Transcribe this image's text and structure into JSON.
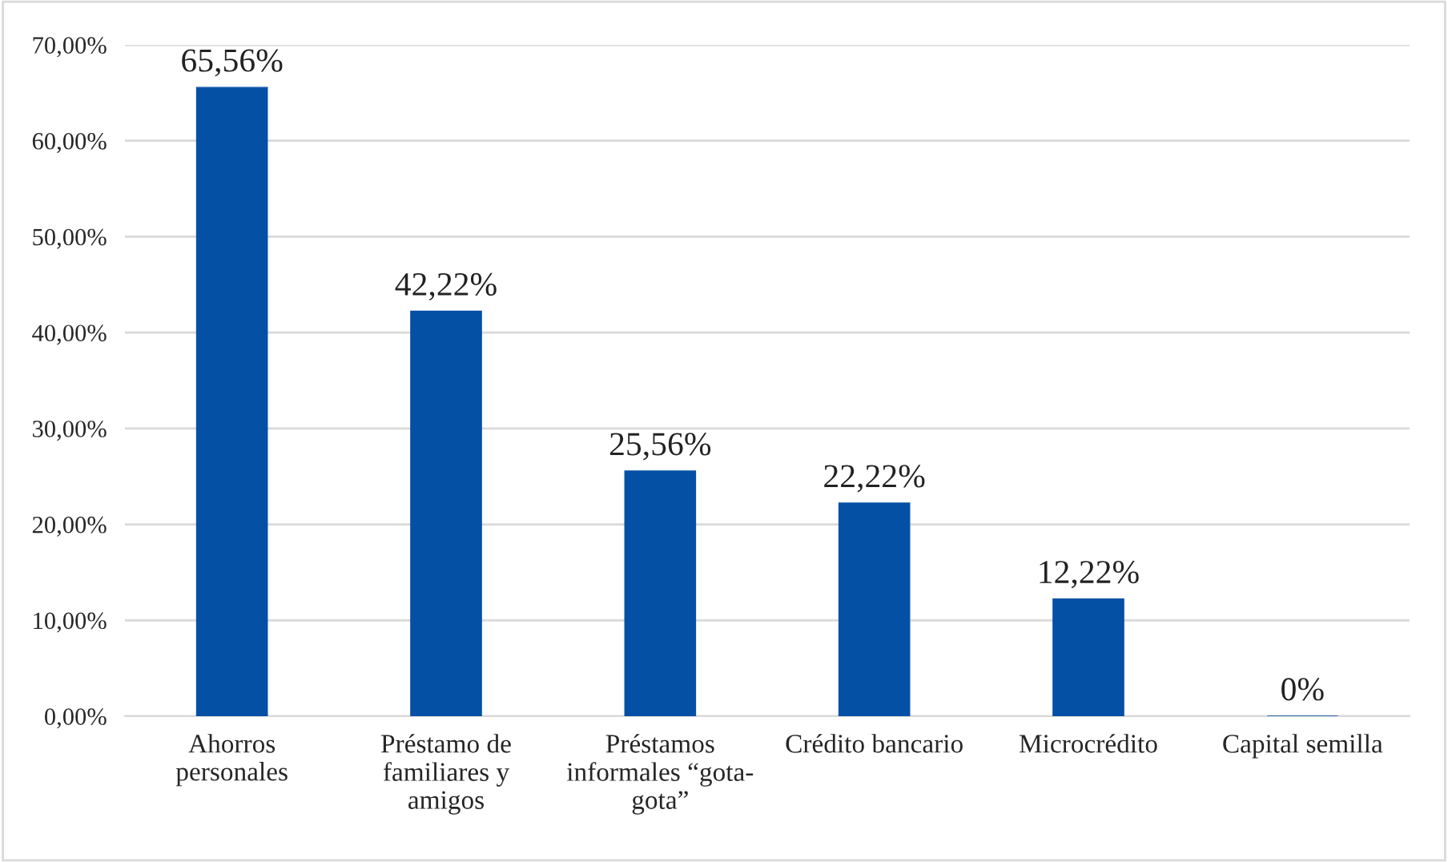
{
  "chart_data": {
    "type": "bar",
    "categories": [
      "Ahorros\npersonales",
      "Préstamo de\nfamiliares y\namigos",
      "Préstamos\ninformales “gota-\ngota”",
      "Crédito bancario",
      "Microcrédito",
      "Capital semilla"
    ],
    "values": [
      65.56,
      42.22,
      25.56,
      22.22,
      12.22,
      0
    ],
    "value_labels": [
      "65,56%",
      "42,22%",
      "25,56%",
      "22,22%",
      "12,22%",
      "0%"
    ],
    "color": "#0450a5",
    "ylim": [
      0,
      70
    ],
    "yticks": [
      {
        "value": 0,
        "label": "0,00%"
      },
      {
        "value": 10,
        "label": "10,00%"
      },
      {
        "value": 20,
        "label": "20,00%"
      },
      {
        "value": 30,
        "label": "30,00%"
      },
      {
        "value": 40,
        "label": "40,00%"
      },
      {
        "value": 50,
        "label": "50,00%"
      },
      {
        "value": 60,
        "label": "60,00%"
      },
      {
        "value": 70,
        "label": "70,00%"
      }
    ],
    "grid": "y",
    "legend": false
  }
}
